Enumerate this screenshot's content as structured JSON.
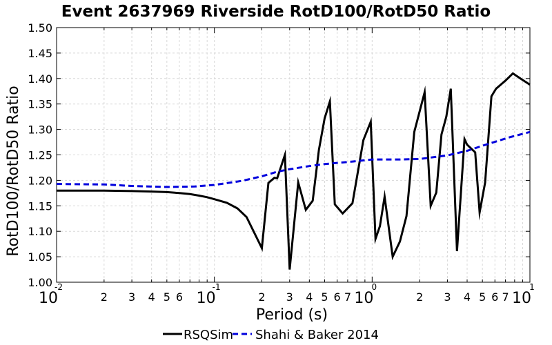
{
  "chart_data": {
    "type": "line",
    "title": "Event 2637969 Riverside RotD100/RotD50 Ratio",
    "xlabel": "Period (s)",
    "ylabel": "RotD100/RotD50 Ratio",
    "xscale": "log",
    "xlim": [
      0.01,
      10
    ],
    "ylim": [
      1.0,
      1.5
    ],
    "yticks": [
      "1.00",
      "1.05",
      "1.10",
      "1.15",
      "1.20",
      "1.25",
      "1.30",
      "1.35",
      "1.40",
      "1.45",
      "1.50"
    ],
    "xticks_major": [
      {
        "value": 0.01,
        "base": "10",
        "exp": "-2"
      },
      {
        "value": 0.1,
        "base": "10",
        "exp": "-1"
      },
      {
        "value": 1,
        "base": "10",
        "exp": "0"
      },
      {
        "value": 10,
        "base": "10",
        "exp": "1"
      }
    ],
    "xticks_minor_labels": [
      "2",
      "3",
      "4",
      "5",
      "6",
      "7"
    ],
    "grid": true,
    "legend_position": "bottom-center",
    "series": [
      {
        "name": "RSQSim",
        "color": "#000000",
        "style": "solid",
        "x": [
          0.01,
          0.02,
          0.03,
          0.04,
          0.05,
          0.06,
          0.07,
          0.08,
          0.09,
          0.1,
          0.12,
          0.14,
          0.16,
          0.2,
          0.22,
          0.24,
          0.25,
          0.28,
          0.3,
          0.34,
          0.38,
          0.42,
          0.46,
          0.5,
          0.54,
          0.58,
          0.65,
          0.75,
          0.88,
          0.98,
          1.05,
          1.12,
          1.2,
          1.35,
          1.5,
          1.65,
          1.85,
          2.15,
          2.35,
          2.55,
          2.75,
          2.95,
          3.15,
          3.45,
          3.85,
          4.0,
          4.5,
          4.8,
          5.2,
          5.7,
          6.1,
          7.0,
          7.8,
          8.7,
          10.0
        ],
        "y": [
          1.18,
          1.18,
          1.179,
          1.178,
          1.177,
          1.175,
          1.173,
          1.17,
          1.167,
          1.163,
          1.156,
          1.145,
          1.128,
          1.067,
          1.195,
          1.205,
          1.204,
          1.25,
          1.025,
          1.196,
          1.142,
          1.16,
          1.26,
          1.322,
          1.355,
          1.153,
          1.135,
          1.155,
          1.279,
          1.315,
          1.085,
          1.11,
          1.168,
          1.05,
          1.08,
          1.13,
          1.295,
          1.373,
          1.15,
          1.176,
          1.29,
          1.325,
          1.38,
          1.061,
          1.281,
          1.27,
          1.255,
          1.137,
          1.196,
          1.365,
          1.38,
          1.396,
          1.41,
          1.4,
          1.388
        ]
      },
      {
        "name": "Shahi & Baker 2014",
        "color": "#0000dd",
        "style": "dashed",
        "x": [
          0.01,
          0.02,
          0.03,
          0.05,
          0.075,
          0.1,
          0.15,
          0.2,
          0.25,
          0.3,
          0.4,
          0.5,
          0.75,
          1.0,
          1.5,
          2.0,
          3.0,
          4.0,
          5.0,
          7.5,
          10.0
        ],
        "y": [
          1.193,
          1.192,
          1.189,
          1.187,
          1.188,
          1.191,
          1.199,
          1.208,
          1.217,
          1.222,
          1.228,
          1.232,
          1.237,
          1.241,
          1.241,
          1.242,
          1.249,
          1.258,
          1.268,
          1.285,
          1.295
        ]
      }
    ]
  }
}
